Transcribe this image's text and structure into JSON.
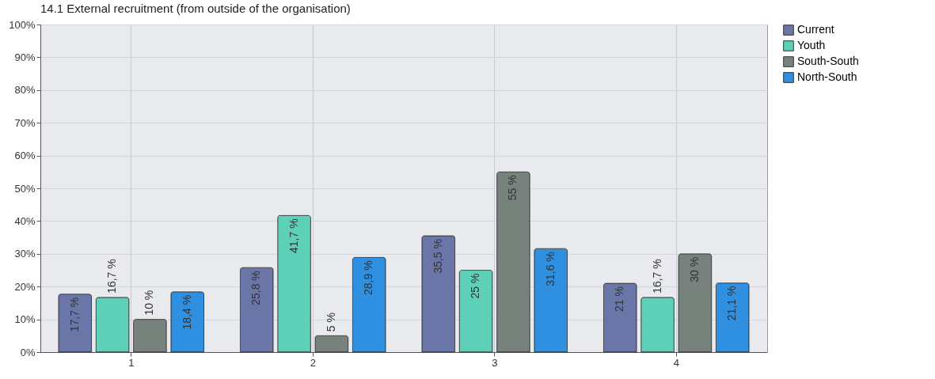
{
  "chart_data": {
    "type": "bar",
    "title": "14.1 External recruitment (from outside of the organisation)",
    "categories": [
      "1",
      "2",
      "3",
      "4"
    ],
    "series": [
      {
        "name": "Current",
        "color": "#6b76a8",
        "values": [
          17.7,
          25.8,
          35.5,
          21
        ],
        "value_labels": [
          "17,7 %",
          "25,8 %",
          "35,5 %",
          "21 %"
        ]
      },
      {
        "name": "Youth",
        "color": "#5fd0b8",
        "values": [
          16.7,
          41.7,
          25,
          16.7
        ],
        "value_labels": [
          "16,7 %",
          "41,7 %",
          "25 %",
          "16,7 %"
        ]
      },
      {
        "name": "South-South",
        "color": "#78827c",
        "values": [
          10,
          5,
          55,
          30
        ],
        "value_labels": [
          "10 %",
          "5 %",
          "55 %",
          "30 %"
        ]
      },
      {
        "name": "North-South",
        "color": "#2f8fe0",
        "values": [
          18.4,
          28.9,
          31.6,
          21.1
        ],
        "value_labels": [
          "18,4 %",
          "28,9 %",
          "31,6 %",
          "21,1 %"
        ]
      }
    ],
    "ylim": [
      0,
      100
    ],
    "yticks": [
      {
        "value": 0,
        "label": "0%"
      },
      {
        "value": 10,
        "label": "10%"
      },
      {
        "value": 20,
        "label": "20%"
      },
      {
        "value": 30,
        "label": "30%"
      },
      {
        "value": 40,
        "label": "40%"
      },
      {
        "value": 50,
        "label": "50%"
      },
      {
        "value": 60,
        "label": "60%"
      },
      {
        "value": 70,
        "label": "70%"
      },
      {
        "value": 80,
        "label": "80%"
      },
      {
        "value": 90,
        "label": "90%"
      },
      {
        "value": 100,
        "label": "100%"
      }
    ],
    "grid": true,
    "legend": "top right"
  }
}
